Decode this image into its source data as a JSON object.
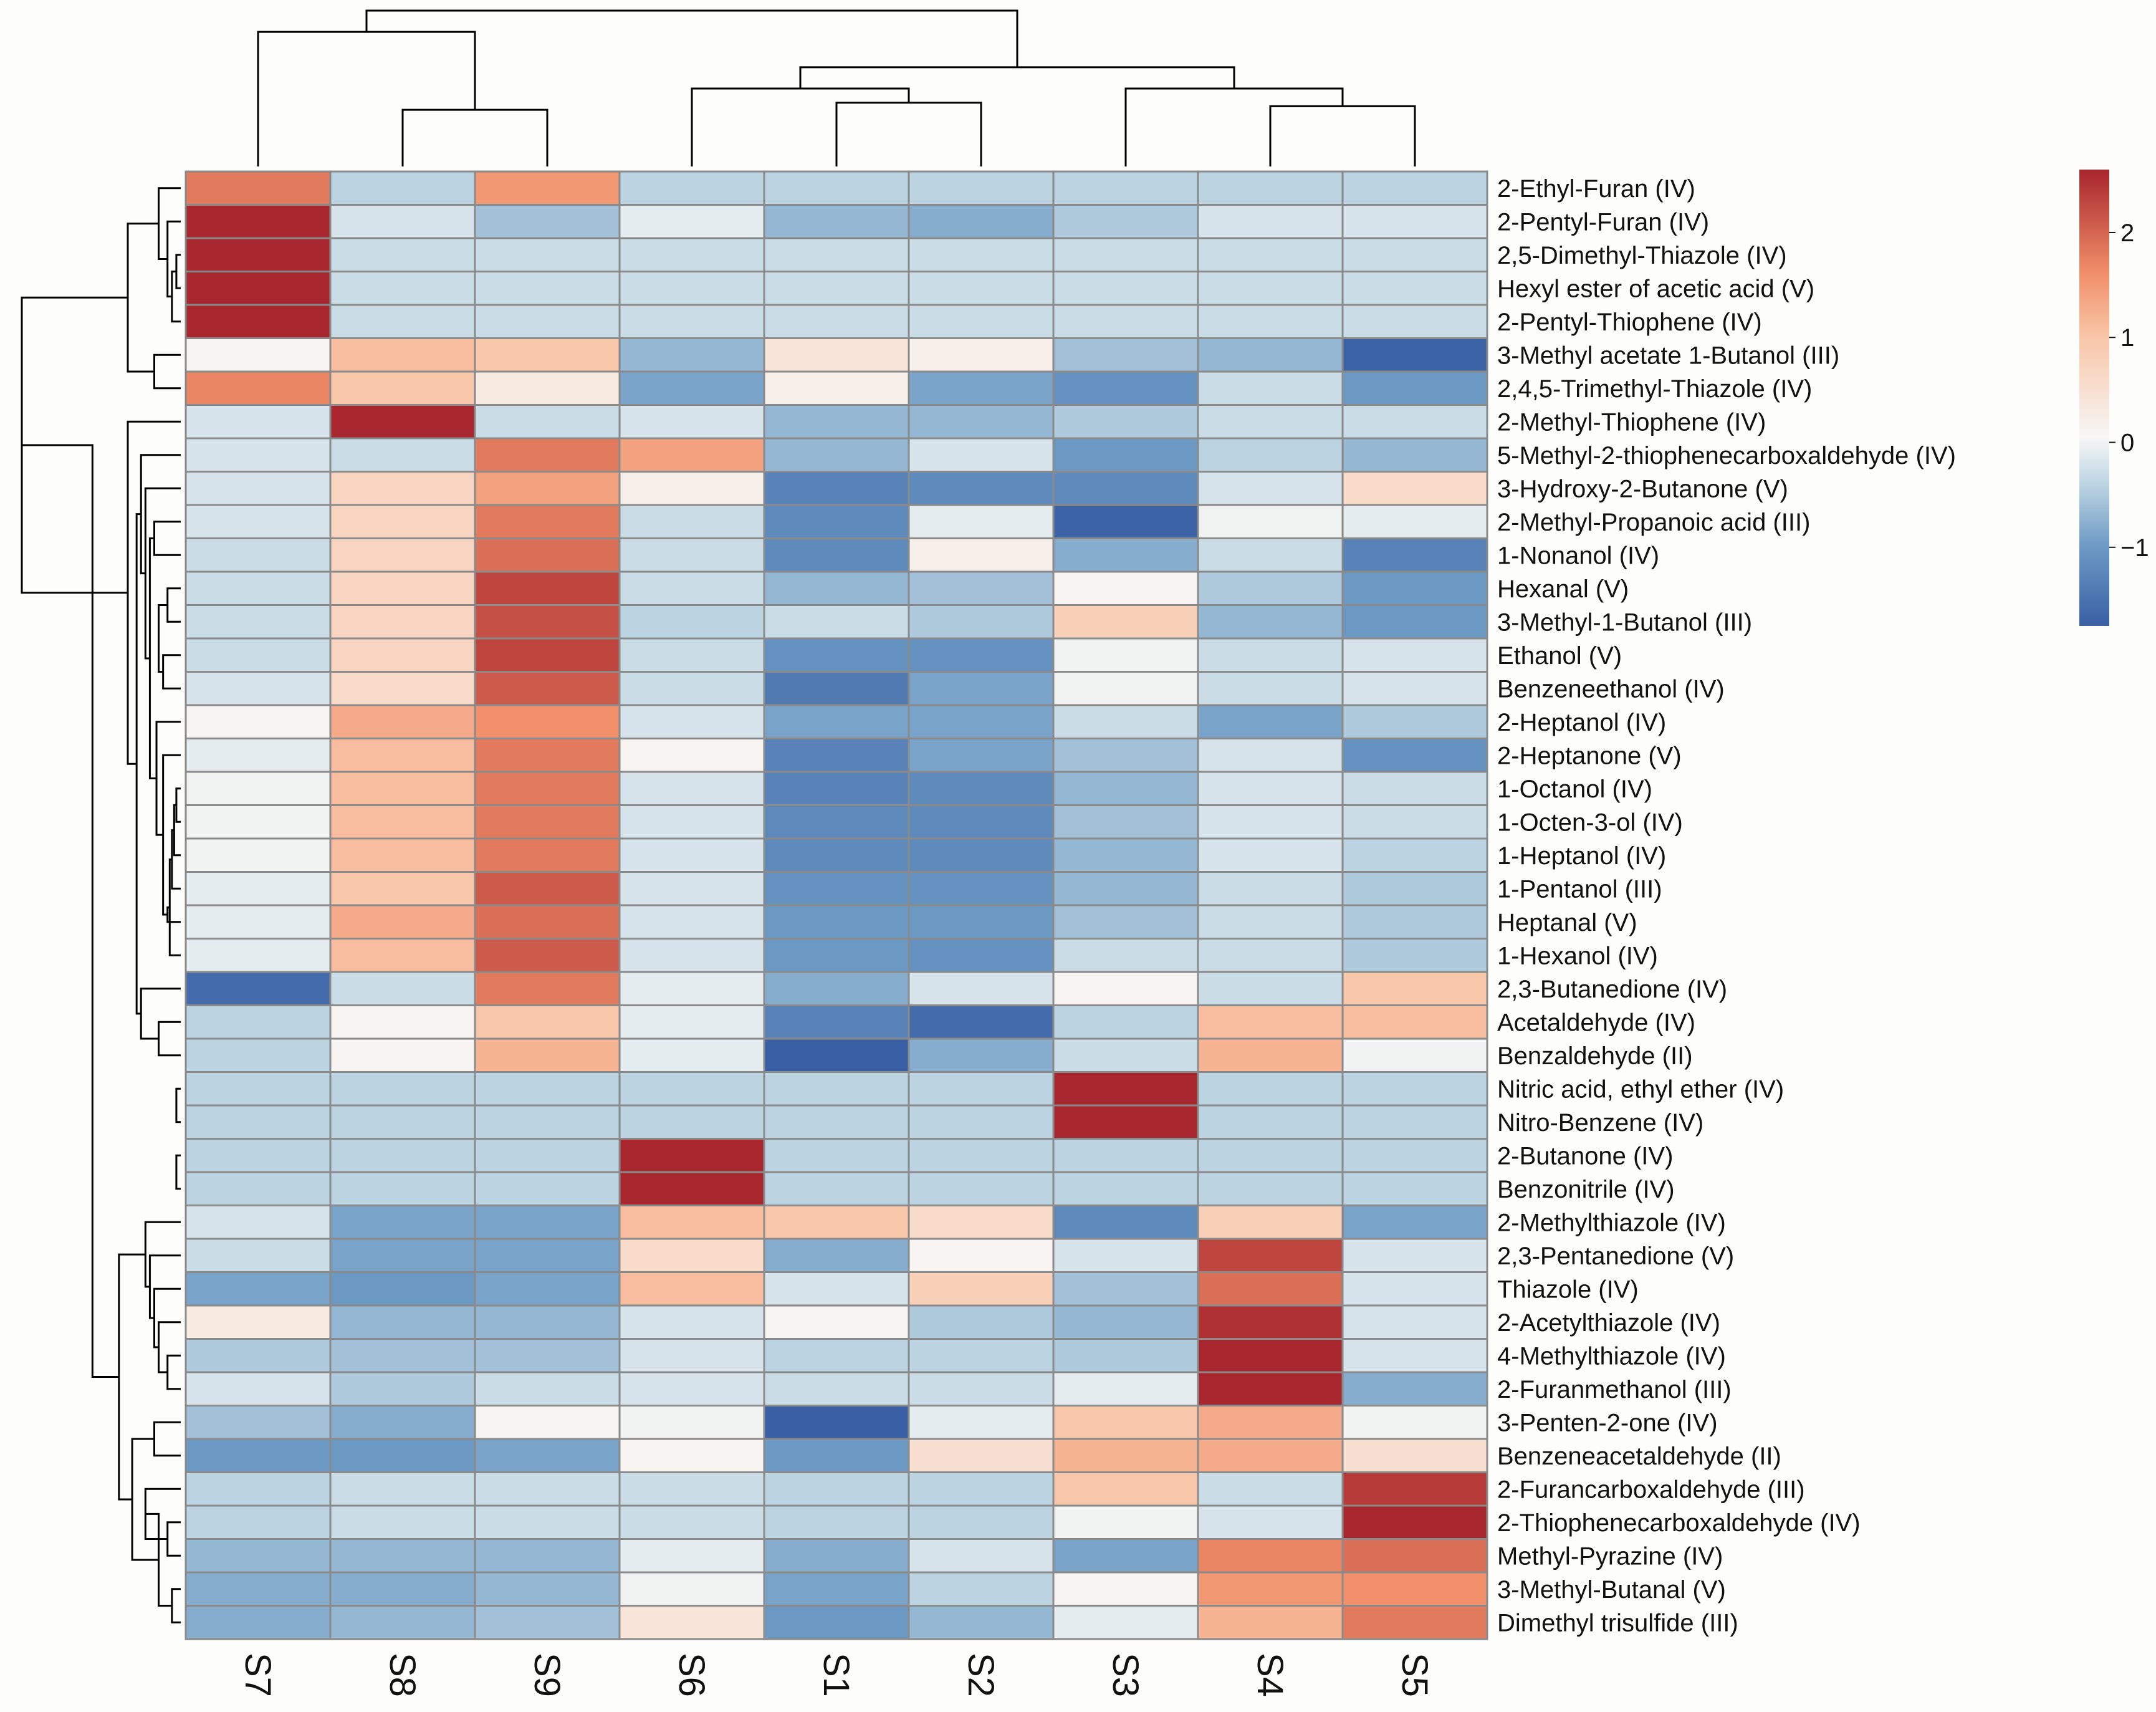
{
  "chart_data": {
    "type": "heatmap",
    "title": "",
    "columns": [
      "S7",
      "S8",
      "S9",
      "S6",
      "S1",
      "S2",
      "S3",
      "S4",
      "S5"
    ],
    "rows": [
      "2-Ethyl-Furan (IV)",
      "2-Pentyl-Furan (IV)",
      "2,5-Dimethyl-Thiazole (IV)",
      "Hexyl ester of acetic acid (V)",
      "2-Pentyl-Thiophene (IV)",
      "3-Methyl acetate 1-Butanol (III)",
      "2,4,5-Trimethyl-Thiazole (IV)",
      "2-Methyl-Thiophene (IV)",
      "5-Methyl-2-thiophenecarboxaldehyde (IV)",
      "3-Hydroxy-2-Butanone (V)",
      "2-Methyl-Propanoic acid (III)",
      "1-Nonanol (IV)",
      "Hexanal (V)",
      "3-Methyl-1-Butanol (III)",
      "Ethanol (V)",
      "Benzeneethanol (IV)",
      "2-Heptanol (IV)",
      "2-Heptanone (V)",
      "1-Octanol (IV)",
      "1-Octen-3-ol (IV)",
      "1-Heptanol (IV)",
      "1-Pentanol (III)",
      "Heptanal (V)",
      "1-Hexanol (IV)",
      "2,3-Butanedione (IV)",
      "Acetaldehyde (IV)",
      "Benzaldehyde (II)",
      "Nitric acid, ethyl ether (IV)",
      "Nitro-Benzene (IV)",
      "2-Butanone (IV)",
      "Benzonitrile (IV)",
      "2-Methylthiazole (IV)",
      "2,3-Pentanedione (V)",
      "Thiazole (IV)",
      "2-Acetylthiazole (IV)",
      "4-Methylthiazole (IV)",
      "2-Furanmethanol (III)",
      "3-Penten-2-one (IV)",
      "Benzeneacetaldehyde (II)",
      "2-Furancarboxaldehyde (III)",
      "2-Thiophenecarboxaldehyde (IV)",
      "Methyl-Pyrazine (IV)",
      "3-Methyl-Butanal (V)",
      "Dimethyl trisulfide (III)"
    ],
    "values": [
      [
        1.8,
        -0.4,
        1.5,
        -0.4,
        -0.4,
        -0.4,
        -0.4,
        -0.4,
        -0.4
      ],
      [
        2.6,
        -0.2,
        -0.6,
        -0.1,
        -0.7,
        -0.8,
        -0.5,
        -0.2,
        -0.2
      ],
      [
        2.6,
        -0.3,
        -0.3,
        -0.3,
        -0.3,
        -0.3,
        -0.3,
        -0.3,
        -0.3
      ],
      [
        2.6,
        -0.3,
        -0.3,
        -0.3,
        -0.3,
        -0.3,
        -0.3,
        -0.3,
        -0.3
      ],
      [
        2.6,
        -0.3,
        -0.3,
        -0.3,
        -0.3,
        -0.3,
        -0.3,
        -0.3,
        -0.3
      ],
      [
        0.1,
        1.1,
        1.0,
        -0.7,
        0.4,
        0.2,
        -0.6,
        -0.7,
        -1.7
      ],
      [
        1.7,
        1.0,
        0.3,
        -0.9,
        0.2,
        -0.9,
        -1.1,
        -0.3,
        -1.0
      ],
      [
        -0.2,
        2.6,
        -0.3,
        -0.2,
        -0.7,
        -0.7,
        -0.5,
        -0.3,
        -0.3
      ],
      [
        -0.2,
        -0.3,
        1.8,
        1.4,
        -0.7,
        -0.2,
        -1.0,
        -0.4,
        -0.7
      ],
      [
        -0.2,
        0.7,
        1.4,
        0.2,
        -1.3,
        -1.2,
        -1.2,
        -0.2,
        0.6
      ],
      [
        -0.2,
        0.7,
        1.8,
        -0.3,
        -1.2,
        -0.1,
        -1.7,
        0.0,
        -0.1
      ],
      [
        -0.3,
        0.7,
        1.9,
        -0.3,
        -1.2,
        0.2,
        -0.8,
        -0.3,
        -1.3
      ],
      [
        -0.3,
        0.7,
        2.3,
        -0.3,
        -0.7,
        -0.6,
        0.1,
        -0.5,
        -1.0
      ],
      [
        -0.3,
        0.7,
        2.2,
        -0.4,
        -0.3,
        -0.5,
        0.8,
        -0.7,
        -1.0
      ],
      [
        -0.3,
        0.7,
        2.3,
        -0.3,
        -1.1,
        -1.1,
        0.0,
        -0.3,
        -0.2
      ],
      [
        -0.2,
        0.6,
        2.1,
        -0.3,
        -1.4,
        -0.9,
        0.0,
        -0.3,
        -0.2
      ],
      [
        0.1,
        1.3,
        1.6,
        -0.2,
        -0.9,
        -0.9,
        -0.3,
        -0.9,
        -0.5
      ],
      [
        -0.1,
        1.1,
        1.8,
        0.1,
        -1.3,
        -0.9,
        -0.6,
        -0.2,
        -1.1
      ],
      [
        0.0,
        1.1,
        1.8,
        -0.2,
        -1.3,
        -1.2,
        -0.7,
        -0.2,
        -0.3
      ],
      [
        0.0,
        1.1,
        1.8,
        -0.2,
        -1.2,
        -1.2,
        -0.6,
        -0.2,
        -0.3
      ],
      [
        0.0,
        1.1,
        1.8,
        -0.2,
        -1.2,
        -1.2,
        -0.7,
        -0.2,
        -0.4
      ],
      [
        -0.1,
        1.0,
        2.1,
        -0.2,
        -1.1,
        -1.1,
        -0.7,
        -0.3,
        -0.5
      ],
      [
        -0.1,
        1.3,
        1.9,
        -0.2,
        -1.0,
        -1.0,
        -0.6,
        -0.3,
        -0.5
      ],
      [
        -0.1,
        1.1,
        2.1,
        -0.2,
        -1.0,
        -1.1,
        -0.3,
        -0.3,
        -0.5
      ],
      [
        -1.6,
        -0.3,
        1.8,
        -0.1,
        -0.8,
        -0.2,
        0.1,
        -0.3,
        1.0
      ],
      [
        -0.4,
        0.1,
        1.0,
        -0.1,
        -1.3,
        -1.6,
        -0.4,
        1.1,
        1.1
      ],
      [
        -0.4,
        0.1,
        1.2,
        -0.1,
        -1.8,
        -0.8,
        -0.3,
        1.2,
        0.0
      ],
      [
        -0.4,
        -0.4,
        -0.4,
        -0.4,
        -0.4,
        -0.4,
        2.6,
        -0.4,
        -0.4
      ],
      [
        -0.4,
        -0.4,
        -0.4,
        -0.4,
        -0.4,
        -0.4,
        2.6,
        -0.4,
        -0.4
      ],
      [
        -0.4,
        -0.4,
        -0.4,
        2.6,
        -0.4,
        -0.4,
        -0.4,
        -0.4,
        -0.4
      ],
      [
        -0.4,
        -0.4,
        -0.4,
        2.6,
        -0.4,
        -0.4,
        -0.4,
        -0.4,
        -0.4
      ],
      [
        -0.2,
        -0.9,
        -0.9,
        1.1,
        1.0,
        0.6,
        -1.2,
        0.8,
        -0.9
      ],
      [
        -0.3,
        -0.9,
        -0.9,
        0.6,
        -0.8,
        0.1,
        -0.2,
        2.3,
        -0.2
      ],
      [
        -0.9,
        -1.0,
        -0.9,
        1.1,
        -0.2,
        0.8,
        -0.6,
        1.9,
        -0.2
      ],
      [
        0.3,
        -0.7,
        -0.7,
        -0.2,
        0.1,
        -0.5,
        -0.7,
        2.5,
        -0.2
      ],
      [
        -0.5,
        -0.6,
        -0.6,
        -0.2,
        -0.4,
        -0.4,
        -0.5,
        2.6,
        -0.2
      ],
      [
        -0.2,
        -0.5,
        -0.3,
        -0.2,
        -0.3,
        -0.3,
        -0.1,
        2.6,
        -0.8
      ],
      [
        -0.6,
        -0.8,
        0.1,
        0.0,
        -1.8,
        -0.1,
        1.0,
        1.3,
        0.0
      ],
      [
        -1.0,
        -1.0,
        -0.9,
        0.1,
        -1.0,
        0.5,
        1.2,
        1.3,
        0.5
      ],
      [
        -0.4,
        -0.3,
        -0.3,
        -0.3,
        -0.4,
        -0.4,
        1.0,
        -0.3,
        2.4
      ],
      [
        -0.4,
        -0.3,
        -0.3,
        -0.3,
        -0.4,
        -0.4,
        0.0,
        -0.2,
        2.6
      ],
      [
        -0.7,
        -0.7,
        -0.7,
        -0.1,
        -0.8,
        -0.2,
        -0.9,
        1.7,
        1.9
      ],
      [
        -0.8,
        -0.8,
        -0.7,
        0.0,
        -0.9,
        -0.4,
        0.1,
        1.5,
        1.6
      ],
      [
        -0.8,
        -0.7,
        -0.6,
        0.4,
        -1.0,
        -0.7,
        -0.1,
        1.2,
        1.8
      ]
    ],
    "color_scale": {
      "min": -1.75,
      "max": 2.6,
      "stops": [
        {
          "value": -1.75,
          "color": "#3a5fa5"
        },
        {
          "value": -1.0,
          "color": "#6c99c4"
        },
        {
          "value": -0.35,
          "color": "#c3d9e5"
        },
        {
          "value": 0.05,
          "color": "#f7f7f5"
        },
        {
          "value": 1.0,
          "color": "#f8c6a8"
        },
        {
          "value": 1.6,
          "color": "#f1906a"
        },
        {
          "value": 2.6,
          "color": "#a8262d"
        }
      ]
    },
    "legend": {
      "ticks": [
        -1,
        0,
        1,
        2
      ],
      "tick_labels": [
        "−1",
        "0",
        "1",
        "2"
      ],
      "placement": "top-right"
    },
    "cell_border_color": "#8a8a8a",
    "dendrogram_color": "#000000",
    "row_dendrogram": [
      [
        29,
        30,
        0.1
      ],
      [
        27,
        28,
        0.1
      ],
      [
        35,
        36,
        0.3
      ],
      [
        2,
        3,
        0.1
      ],
      [
        -4,
        4,
        0.2
      ],
      [
        1,
        -5,
        0.3
      ],
      [
        -6,
        0,
        0.5
      ],
      [
        5,
        6,
        0.6
      ],
      [
        -8,
        -7,
        1.2
      ],
      [
        25,
        26,
        0.5
      ],
      [
        18,
        19,
        0.1
      ],
      [
        -11,
        20,
        0.15
      ],
      [
        -12,
        21,
        0.2
      ],
      [
        -13,
        23,
        0.25
      ],
      [
        -14,
        22,
        0.3
      ],
      [
        -15,
        17,
        0.4
      ],
      [
        12,
        13,
        0.3
      ],
      [
        14,
        15,
        0.4
      ],
      [
        -17,
        -18,
        0.5
      ],
      [
        -16,
        16,
        0.55
      ],
      [
        10,
        11,
        0.6
      ],
      [
        -21,
        -20,
        0.7
      ],
      [
        9,
        -22,
        0.8
      ],
      [
        8,
        -23,
        0.9
      ],
      [
        24,
        -10,
        0.9
      ],
      [
        -24,
        -25,
        1.0
      ],
      [
        7,
        -26,
        1.2
      ],
      [
        -9,
        -27,
        3.6
      ],
      [
        40,
        41,
        0.3
      ],
      [
        39,
        -29,
        0.8
      ],
      [
        43,
        42,
        0.2
      ],
      [
        -30,
        -31,
        0.5
      ],
      [
        37,
        38,
        0.6
      ],
      [
        -32,
        -33,
        1.1
      ],
      [
        34,
        -3,
        0.5
      ],
      [
        33,
        -35,
        0.6
      ],
      [
        32,
        -36,
        0.7
      ],
      [
        31,
        -37,
        0.8
      ],
      [
        -38,
        -34,
        1.4
      ],
      [
        -28,
        -39,
        2.0
      ]
    ],
    "col_dendrogram": [
      [
        1,
        2,
        0.8
      ],
      [
        0,
        -1,
        1.9
      ],
      [
        4,
        5,
        0.9
      ],
      [
        -3,
        3,
        1.1
      ],
      [
        7,
        8,
        0.85
      ],
      [
        6,
        -5,
        1.1
      ],
      [
        -4,
        -6,
        1.4
      ],
      [
        -2,
        -7,
        2.2
      ]
    ]
  }
}
